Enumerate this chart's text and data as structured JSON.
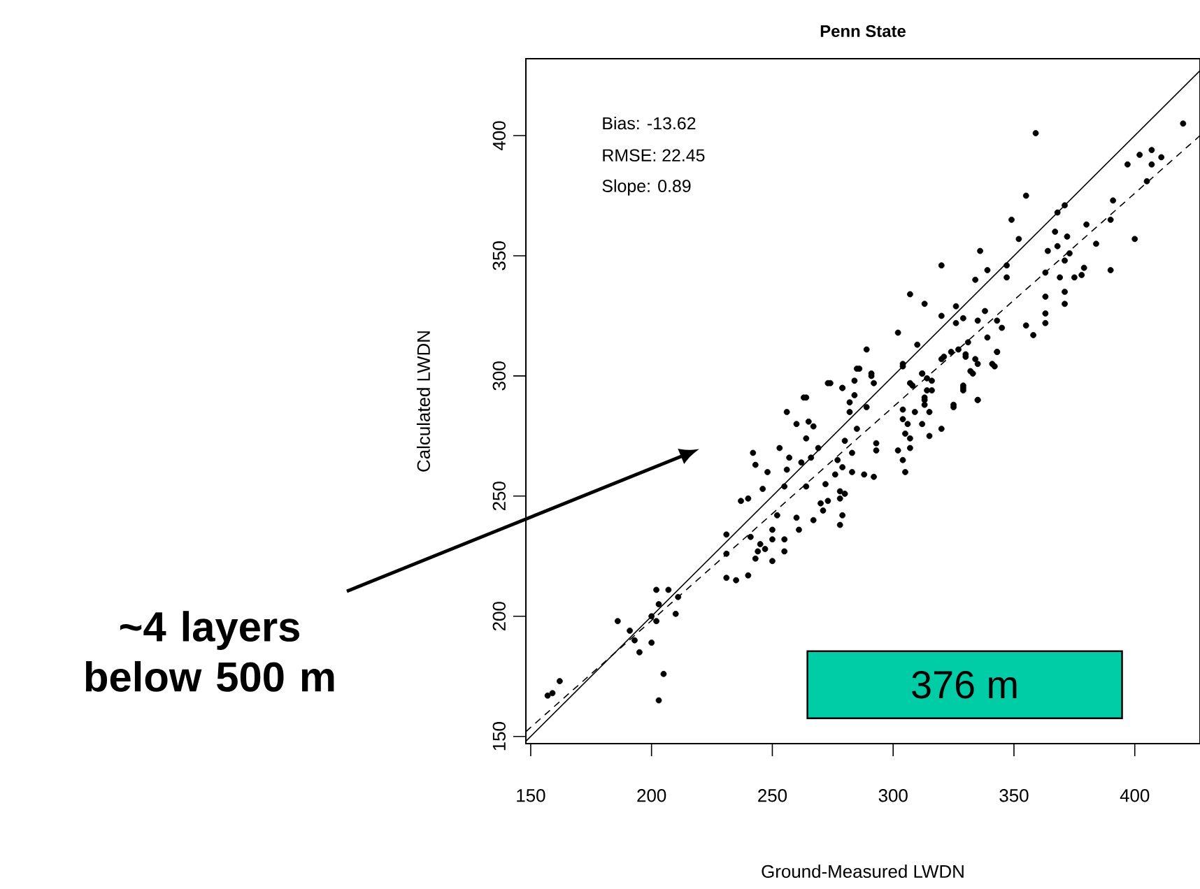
{
  "chart_data": {
    "type": "scatter",
    "title": "Penn State",
    "xlabel": "Ground-Measured LWDN",
    "ylabel": "Calculated LWDN",
    "xlim": [
      148,
      427
    ],
    "ylim": [
      147,
      432
    ],
    "xticks": [
      150,
      200,
      250,
      300,
      350,
      400
    ],
    "yticks": [
      150,
      200,
      250,
      300,
      350,
      400
    ],
    "annotations": [
      "Bias: -13.62",
      "RMSE: 22.45",
      "Slope: 0.89",
      "376 m",
      "~4 layers below 500 m"
    ],
    "series": [
      {
        "color": "#000000",
        "marker": "circle",
        "x": [
          359,
          420,
          402,
          407,
          407,
          397,
          411,
          405,
          391,
          390,
          384,
          390,
          400,
          380,
          371,
          368,
          355,
          349,
          352,
          372,
          367,
          364,
          368,
          373,
          371,
          379,
          363,
          369,
          375,
          378,
          371,
          363,
          371,
          363,
          363,
          355,
          358,
          347,
          347,
          339,
          334,
          336,
          320,
          345,
          343,
          338,
          335,
          339,
          343,
          341,
          334,
          330,
          331,
          327,
          326,
          329,
          320,
          326,
          313,
          307,
          310,
          321,
          324,
          333,
          304,
          302,
          289,
          286,
          291,
          284,
          273,
          279,
          264,
          312,
          314,
          308,
          316,
          329,
          335,
          325,
          313,
          304,
          285,
          274,
          279,
          284,
          263,
          291,
          292,
          282,
          282,
          289,
          256,
          260,
          265,
          267,
          264,
          269,
          285,
          280,
          283,
          293,
          293,
          253,
          257,
          262,
          266,
          242,
          243,
          248,
          256,
          255,
          246,
          264,
          240,
          237,
          277,
          279,
          276,
          283,
          288,
          292,
          272,
          278,
          280,
          278,
          270,
          273,
          271,
          279,
          260,
          267,
          278,
          252,
          261,
          250,
          231,
          241,
          250,
          255,
          245,
          244,
          247,
          255,
          231,
          243,
          250,
          231,
          235,
          240,
          202,
          207,
          211,
          203,
          210,
          200,
          202,
          186,
          191,
          193,
          200,
          195,
          205,
          203,
          162,
          159,
          157,
          320,
          330,
          335,
          342,
          332,
          343,
          312,
          314,
          307,
          316,
          329,
          329,
          335,
          325,
          313,
          313,
          304,
          309,
          315,
          304,
          312,
          306,
          320,
          305,
          307,
          315,
          307,
          302,
          304,
          305
        ],
        "values": [
          401,
          405,
          392,
          394,
          388,
          388,
          391,
          381,
          373,
          365,
          355,
          344,
          357,
          363,
          371,
          368,
          375,
          365,
          357,
          358,
          360,
          352,
          354,
          351,
          348,
          345,
          343,
          341,
          341,
          342,
          335,
          333,
          330,
          326,
          322,
          321,
          317,
          346,
          341,
          344,
          340,
          352,
          346,
          320,
          323,
          327,
          323,
          316,
          310,
          305,
          307,
          309,
          314,
          311,
          322,
          324,
          325,
          329,
          330,
          334,
          313,
          308,
          310,
          301,
          305,
          318,
          311,
          303,
          301,
          298,
          297,
          295,
          291,
          301,
          294,
          296,
          298,
          295,
          290,
          288,
          290,
          304,
          303,
          297,
          295,
          292,
          291,
          300,
          297,
          289,
          285,
          287,
          285,
          280,
          281,
          279,
          274,
          270,
          278,
          273,
          268,
          272,
          269,
          270,
          266,
          264,
          266,
          268,
          263,
          260,
          261,
          254,
          253,
          254,
          249,
          248,
          265,
          262,
          259,
          260,
          259,
          258,
          255,
          252,
          251,
          249,
          247,
          248,
          244,
          242,
          241,
          240,
          238,
          242,
          236,
          236,
          234,
          233,
          232,
          232,
          230,
          227,
          228,
          227,
          226,
          224,
          223,
          216,
          215,
          217,
          211,
          211,
          208,
          205,
          201,
          200,
          198,
          198,
          194,
          190,
          189,
          185,
          176,
          165,
          173,
          168,
          167,
          307,
          308,
          305,
          304,
          302,
          310,
          301,
          299,
          297,
          294,
          296,
          294,
          290,
          287,
          291,
          288,
          286,
          285,
          285,
          282,
          280,
          280,
          278,
          276,
          274,
          275,
          270,
          269,
          265,
          260
        ]
      },
      {
        "type": "line",
        "color": "#000000",
        "line_style": "solid",
        "x": [
          148,
          427
        ],
        "values": [
          148,
          427
        ]
      },
      {
        "type": "line",
        "color": "#000000",
        "line_style": "dashed",
        "x": [
          148,
          427
        ],
        "values": [
          152,
          400
        ]
      }
    ]
  }
}
